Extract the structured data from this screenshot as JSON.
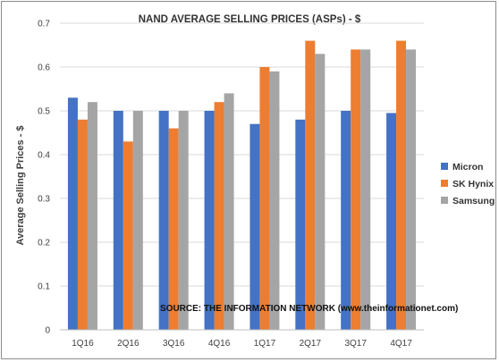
{
  "chart_data": {
    "type": "bar",
    "title": "NAND AVERAGE SELLING PRICES (ASPs)  - $",
    "xlabel": "",
    "ylabel": "Average Selling Prices - $",
    "ylim": [
      0,
      0.7
    ],
    "yticks": [
      "0",
      "0.1",
      "0.2",
      "0.3",
      "0.4",
      "0.5",
      "0.6",
      "0.7"
    ],
    "ytick_values": [
      0,
      0.1,
      0.2,
      0.3,
      0.4,
      0.5,
      0.6,
      0.7
    ],
    "grid": true,
    "legend_position": "right",
    "categories": [
      "1Q16",
      "2Q16",
      "3Q16",
      "4Q16",
      "1Q17",
      "2Q17",
      "3Q17",
      "4Q17"
    ],
    "series": [
      {
        "name": "Micron",
        "color": "#4472C4",
        "values": [
          0.53,
          0.5,
          0.5,
          0.5,
          0.47,
          0.48,
          0.5,
          0.495
        ]
      },
      {
        "name": "SK Hynix",
        "color": "#ED7D31",
        "values": [
          0.48,
          0.43,
          0.46,
          0.52,
          0.6,
          0.66,
          0.64,
          0.66
        ]
      },
      {
        "name": "Samsung",
        "color": "#A5A5A5",
        "values": [
          0.52,
          0.5,
          0.5,
          0.54,
          0.59,
          0.63,
          0.64,
          0.64
        ]
      }
    ],
    "annotation": "SOURCE: THE INFORMATION  NETWORK (www.theinformationet.com)"
  }
}
